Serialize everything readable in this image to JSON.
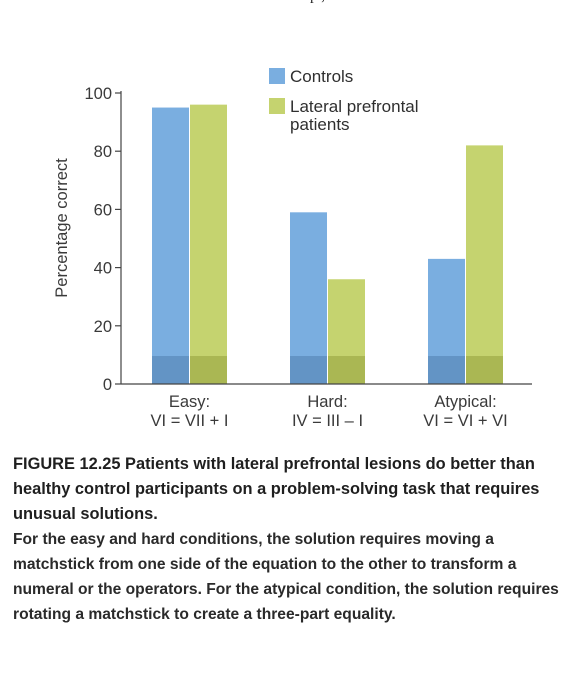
{
  "top_fragment": "p                                  ,",
  "chart_data": {
    "type": "bar",
    "categories": [
      {
        "line1": "Easy:",
        "line2": "VI = VII + I"
      },
      {
        "line1": "Hard:",
        "line2": "IV = III – I"
      },
      {
        "line1": "Atypical:",
        "line2": "VI = VI + VI"
      }
    ],
    "series": [
      {
        "name": "Controls",
        "color": "#7aaee0",
        "values": [
          95,
          59,
          43
        ]
      },
      {
        "name": "Lateral prefrontal patients",
        "legend_lines": [
          "Lateral prefrontal",
          "patients"
        ],
        "color": "#c5d36f",
        "values": [
          96,
          36,
          82
        ]
      }
    ],
    "ylabel": "Percentage correct",
    "xlabel": "",
    "ylim": [
      0,
      100
    ],
    "yticks": [
      0,
      20,
      40,
      60,
      80,
      100
    ],
    "legend_position": "top-right",
    "grid": false
  },
  "caption": {
    "title": "FIGURE 12.25 Patients with lateral prefrontal lesions do better than healthy control participants on a problem-solving task that requires unusual solutions.",
    "body": "For the easy and hard conditions, the solution requires moving a matchstick from one side of the equation to the other to transform a numeral or the operators. For the atypical condition, the solution requires rotating a matchstick to create a three-part equality."
  }
}
